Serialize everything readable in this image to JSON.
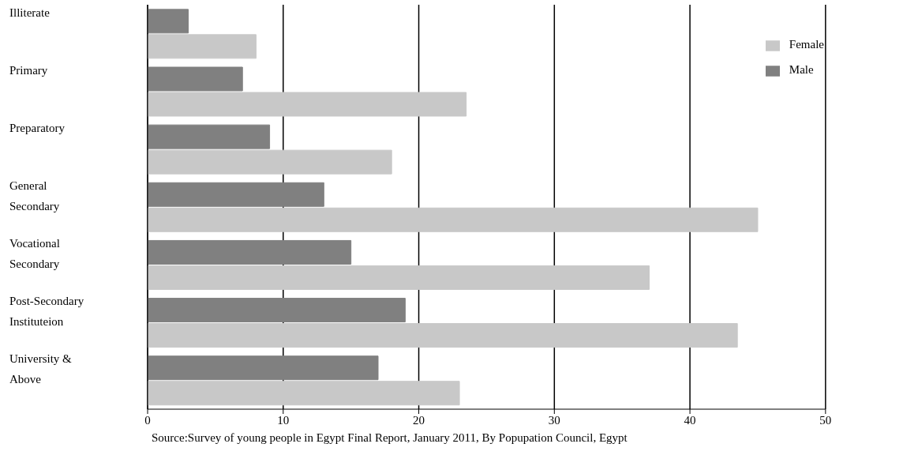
{
  "chart_data": {
    "type": "bar",
    "orientation": "horizontal",
    "categories": [
      "Illiterate",
      "Primary",
      "Preparatory",
      "General Secondary",
      "Vocational Secondary",
      "Post-Secondary Instituteion",
      "University & Above"
    ],
    "series": [
      {
        "name": "Male",
        "color": "#808080",
        "values": [
          3,
          7,
          9,
          13,
          15,
          19,
          17
        ]
      },
      {
        "name": "Female",
        "color": "#c8c8c8",
        "values": [
          8,
          23.5,
          18,
          45,
          37,
          43.5,
          23
        ]
      }
    ],
    "xlim": [
      0,
      50
    ],
    "xticks": [
      0,
      10,
      20,
      30,
      40,
      50
    ],
    "grid": "x",
    "legend": "top right",
    "annotations": [
      "Source:Survey of young people in Egypt Final Report, January 2011, By Popupation Council, Egypt"
    ]
  }
}
